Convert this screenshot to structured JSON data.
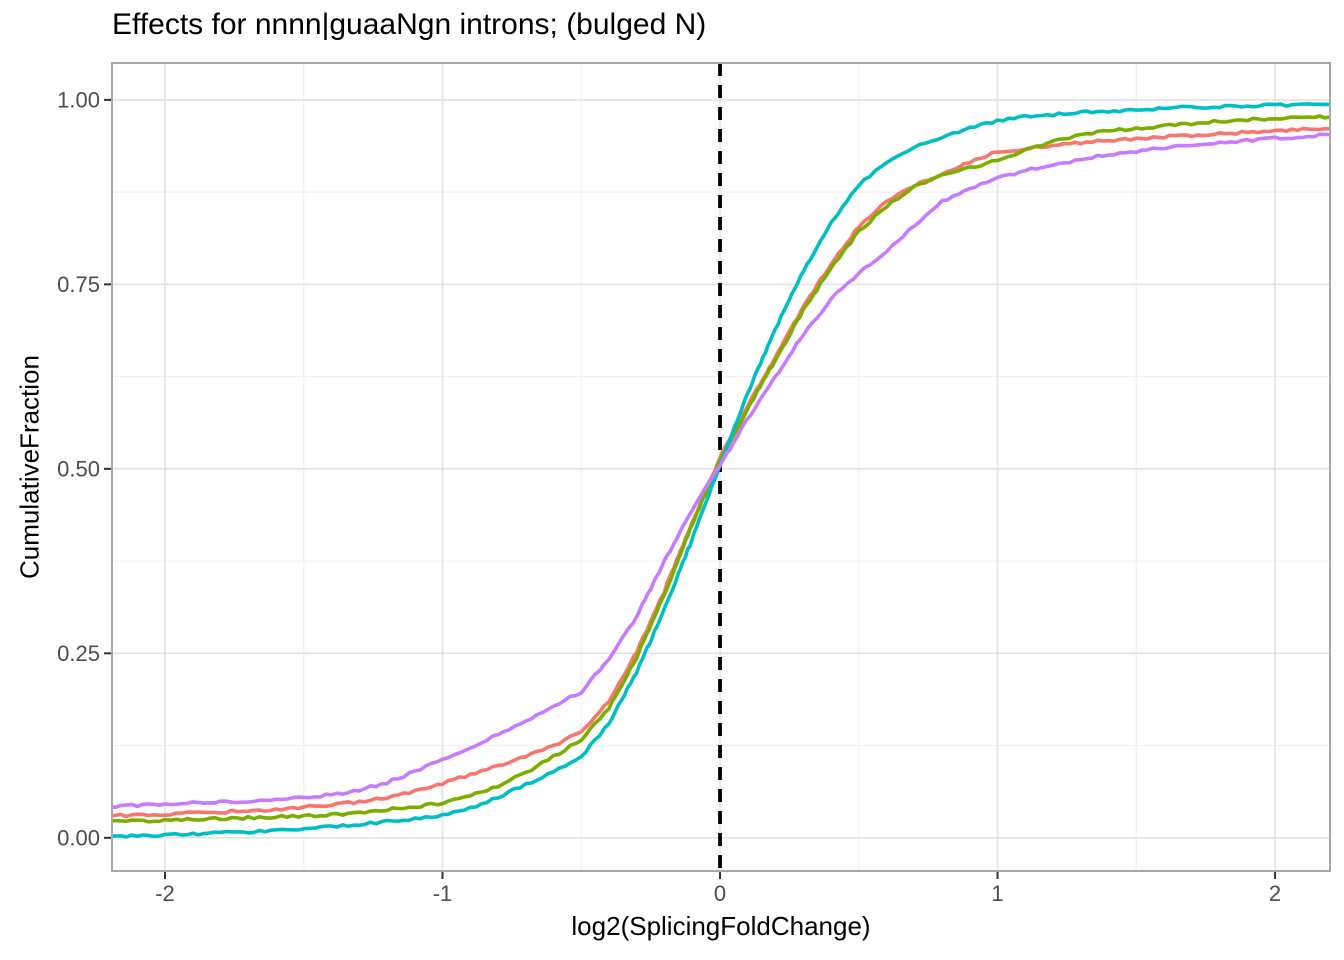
{
  "page": {
    "background": "#FFFFFF"
  },
  "chart_data": {
    "type": "line",
    "variant": "ecdf",
    "title": "Effects for nnnn|guaaNgn introns; (bulged N)",
    "xlabel": "log2(SplicingFoldChange)",
    "ylabel": "CumulativeFraction",
    "xlim": [
      -2.191,
      2.198
    ],
    "ylim": [
      -0.045,
      1.05
    ],
    "grid": "on",
    "legend": "none",
    "x_ticks": {
      "values": [
        -2,
        -1,
        0,
        1,
        2
      ],
      "labels": [
        "-2",
        "-1",
        "0",
        "1",
        "2"
      ]
    },
    "y_ticks": {
      "values": [
        0,
        0.25,
        0.5,
        0.75,
        1.0
      ],
      "labels": [
        "0.00",
        "0.25",
        "0.50",
        "0.75",
        "1.00"
      ]
    },
    "x_minor_gridlines": [
      -1.5,
      -0.5,
      0.5,
      1.5
    ],
    "y_minor_gridlines": [
      0.125,
      0.375,
      0.625,
      0.875
    ],
    "reference_line": {
      "x": 0,
      "style": "dashed",
      "color": "#000000"
    },
    "style": {
      "panel_background": "#FFFFFF",
      "grid_major": "#E3E3E3",
      "grid_minor": "#F1F1F1",
      "panel_border": "#A8A8A8",
      "tick_color": "#333333",
      "tick_label_color": "#4D4D4D"
    },
    "x": [
      -2.2,
      -2.1,
      -2.0,
      -1.9,
      -1.8,
      -1.7,
      -1.6,
      -1.5,
      -1.4,
      -1.3,
      -1.2,
      -1.1,
      -1.0,
      -0.9,
      -0.8,
      -0.7,
      -0.6,
      -0.5,
      -0.4,
      -0.3,
      -0.2,
      -0.1,
      0.0,
      0.1,
      0.2,
      0.3,
      0.4,
      0.5,
      0.6,
      0.7,
      0.8,
      0.9,
      1.0,
      1.1,
      1.2,
      1.3,
      1.4,
      1.5,
      1.6,
      1.7,
      1.8,
      1.9,
      2.0,
      2.1,
      2.2
    ],
    "series": [
      {
        "name": "salmon",
        "color": "#F8766D",
        "values": [
          0.03,
          0.031,
          0.032,
          0.034,
          0.035,
          0.037,
          0.038,
          0.042,
          0.044,
          0.049,
          0.055,
          0.063,
          0.074,
          0.085,
          0.098,
          0.11,
          0.125,
          0.144,
          0.185,
          0.252,
          0.335,
          0.428,
          0.515,
          0.585,
          0.652,
          0.72,
          0.778,
          0.828,
          0.862,
          0.884,
          0.898,
          0.916,
          0.93,
          0.934,
          0.938,
          0.942,
          0.945,
          0.947,
          0.95,
          0.952,
          0.954,
          0.956,
          0.958,
          0.96,
          0.961
        ]
      },
      {
        "name": "olive-green",
        "color": "#7CAE00",
        "values": [
          0.022,
          0.023,
          0.024,
          0.025,
          0.026,
          0.027,
          0.028,
          0.03,
          0.031,
          0.034,
          0.038,
          0.042,
          0.047,
          0.058,
          0.07,
          0.088,
          0.11,
          0.133,
          0.175,
          0.245,
          0.33,
          0.425,
          0.512,
          0.582,
          0.648,
          0.715,
          0.772,
          0.822,
          0.856,
          0.882,
          0.898,
          0.908,
          0.918,
          0.931,
          0.945,
          0.952,
          0.958,
          0.961,
          0.965,
          0.968,
          0.971,
          0.973,
          0.975,
          0.976,
          0.977
        ]
      },
      {
        "name": "teal",
        "color": "#00BFC4",
        "values": [
          0.002,
          0.003,
          0.004,
          0.005,
          0.007,
          0.008,
          0.01,
          0.012,
          0.015,
          0.018,
          0.022,
          0.026,
          0.031,
          0.04,
          0.055,
          0.072,
          0.09,
          0.11,
          0.155,
          0.225,
          0.31,
          0.405,
          0.505,
          0.603,
          0.69,
          0.768,
          0.833,
          0.885,
          0.916,
          0.936,
          0.95,
          0.962,
          0.972,
          0.977,
          0.98,
          0.983,
          0.985,
          0.986,
          0.989,
          0.99,
          0.991,
          0.992,
          0.993,
          0.9935,
          0.994
        ]
      },
      {
        "name": "purple",
        "color": "#C77CFF",
        "values": [
          0.042,
          0.044,
          0.045,
          0.047,
          0.048,
          0.05,
          0.052,
          0.055,
          0.058,
          0.065,
          0.075,
          0.09,
          0.105,
          0.122,
          0.14,
          0.158,
          0.178,
          0.198,
          0.242,
          0.3,
          0.375,
          0.445,
          0.505,
          0.568,
          0.625,
          0.682,
          0.73,
          0.765,
          0.795,
          0.83,
          0.862,
          0.88,
          0.895,
          0.904,
          0.912,
          0.919,
          0.926,
          0.93,
          0.935,
          0.939,
          0.942,
          0.945,
          0.948,
          0.95,
          0.953
        ]
      }
    ]
  }
}
